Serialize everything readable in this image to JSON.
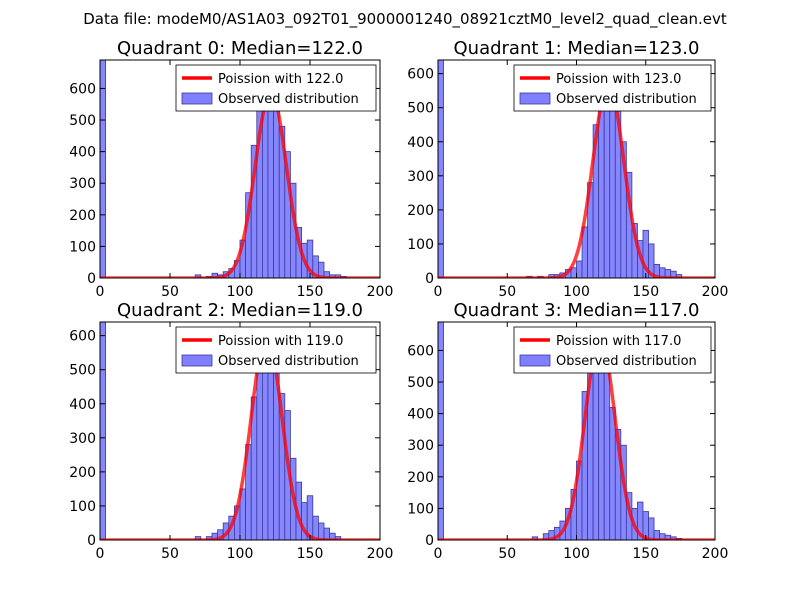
{
  "figure": {
    "suptitle": "Data file: modeM0/AS1A03_092T01_9000001240_08921cztM0_level2_quad_clean.evt"
  },
  "chart_data": [
    {
      "type": "bar",
      "title": "Quadrant 0: Median=122.0",
      "xlim": [
        0,
        200
      ],
      "ylim": [
        0,
        690
      ],
      "xticks": [
        0,
        50,
        100,
        150,
        200
      ],
      "yticks": [
        0,
        100,
        200,
        300,
        400,
        500,
        600
      ],
      "bin_width": 4,
      "series": [
        {
          "name": "Observed distribution",
          "kind": "histogram",
          "bins": [
            [
              0,
              690
            ],
            [
              68,
              10
            ],
            [
              76,
              5
            ],
            [
              80,
              15
            ],
            [
              84,
              10
            ],
            [
              88,
              20
            ],
            [
              92,
              30
            ],
            [
              96,
              55
            ],
            [
              100,
              120
            ],
            [
              104,
              270
            ],
            [
              108,
              420
            ],
            [
              112,
              590
            ],
            [
              116,
              660
            ],
            [
              120,
              660
            ],
            [
              124,
              580
            ],
            [
              128,
              480
            ],
            [
              132,
              400
            ],
            [
              136,
              300
            ],
            [
              140,
              160
            ],
            [
              144,
              110
            ],
            [
              148,
              120
            ],
            [
              152,
              70
            ],
            [
              156,
              50
            ],
            [
              160,
              20
            ],
            [
              164,
              10
            ],
            [
              168,
              10
            ],
            [
              172,
              5
            ]
          ],
          "color": "#7f7fff"
        },
        {
          "name": "Poission with 122.0",
          "kind": "poisson",
          "mean": 122.0,
          "peak": 590,
          "color": "#ff0000"
        }
      ]
    },
    {
      "type": "bar",
      "title": "Quadrant 1: Median=123.0",
      "xlim": [
        0,
        200
      ],
      "ylim": [
        0,
        640
      ],
      "xticks": [
        0,
        50,
        100,
        150,
        200
      ],
      "yticks": [
        0,
        100,
        200,
        300,
        400,
        500,
        600
      ],
      "bin_width": 4,
      "series": [
        {
          "name": "Observed distribution",
          "kind": "histogram",
          "bins": [
            [
              0,
              640
            ],
            [
              64,
              5
            ],
            [
              72,
              5
            ],
            [
              80,
              10
            ],
            [
              84,
              10
            ],
            [
              88,
              15
            ],
            [
              92,
              25
            ],
            [
              96,
              30
            ],
            [
              100,
              50
            ],
            [
              104,
              150
            ],
            [
              108,
              280
            ],
            [
              112,
              450
            ],
            [
              116,
              560
            ],
            [
              120,
              575
            ],
            [
              124,
              550
            ],
            [
              128,
              490
            ],
            [
              132,
              400
            ],
            [
              136,
              310
            ],
            [
              140,
              160
            ],
            [
              144,
              110
            ],
            [
              148,
              140
            ],
            [
              152,
              100
            ],
            [
              156,
              40
            ],
            [
              160,
              30
            ],
            [
              164,
              25
            ],
            [
              168,
              20
            ],
            [
              172,
              10
            ]
          ],
          "color": "#7f7fff"
        },
        {
          "name": "Poission with 123.0",
          "kind": "poisson",
          "mean": 123.0,
          "peak": 570,
          "color": "#ff0000"
        }
      ]
    },
    {
      "type": "bar",
      "title": "Quadrant 2: Median=119.0",
      "xlim": [
        0,
        200
      ],
      "ylim": [
        0,
        640
      ],
      "xticks": [
        0,
        50,
        100,
        150,
        200
      ],
      "yticks": [
        0,
        100,
        200,
        300,
        400,
        500,
        600
      ],
      "bin_width": 4,
      "series": [
        {
          "name": "Observed distribution",
          "kind": "histogram",
          "bins": [
            [
              0,
              640
            ],
            [
              68,
              10
            ],
            [
              76,
              10
            ],
            [
              80,
              20
            ],
            [
              84,
              30
            ],
            [
              88,
              50
            ],
            [
              92,
              70
            ],
            [
              96,
              100
            ],
            [
              100,
              150
            ],
            [
              104,
              280
            ],
            [
              108,
              420
            ],
            [
              112,
              520
            ],
            [
              116,
              590
            ],
            [
              120,
              600
            ],
            [
              124,
              550
            ],
            [
              128,
              430
            ],
            [
              132,
              380
            ],
            [
              136,
              240
            ],
            [
              140,
              170
            ],
            [
              144,
              110
            ],
            [
              148,
              130
            ],
            [
              152,
              70
            ],
            [
              156,
              50
            ],
            [
              160,
              35
            ],
            [
              164,
              20
            ],
            [
              168,
              10
            ]
          ],
          "color": "#7f7fff"
        },
        {
          "name": "Poission with 119.0",
          "kind": "poisson",
          "mean": 119.0,
          "peak": 600,
          "color": "#ff0000"
        }
      ]
    },
    {
      "type": "bar",
      "title": "Quadrant 3: Median=117.0",
      "xlim": [
        0,
        200
      ],
      "ylim": [
        0,
        690
      ],
      "xticks": [
        0,
        50,
        100,
        150,
        200
      ],
      "yticks": [
        0,
        100,
        200,
        300,
        400,
        500,
        600
      ],
      "bin_width": 4,
      "series": [
        {
          "name": "Observed distribution",
          "kind": "histogram",
          "bins": [
            [
              0,
              690
            ],
            [
              68,
              10
            ],
            [
              76,
              20
            ],
            [
              80,
              30
            ],
            [
              84,
              40
            ],
            [
              88,
              60
            ],
            [
              92,
              100
            ],
            [
              96,
              160
            ],
            [
              100,
              250
            ],
            [
              104,
              470
            ],
            [
              108,
              600
            ],
            [
              112,
              620
            ],
            [
              116,
              650
            ],
            [
              120,
              600
            ],
            [
              124,
              420
            ],
            [
              128,
              350
            ],
            [
              132,
              300
            ],
            [
              136,
              150
            ],
            [
              140,
              100
            ],
            [
              144,
              120
            ],
            [
              148,
              90
            ],
            [
              152,
              70
            ],
            [
              156,
              30
            ],
            [
              160,
              20
            ],
            [
              164,
              15
            ],
            [
              168,
              10
            ],
            [
              172,
              5
            ]
          ],
          "color": "#7f7fff"
        },
        {
          "name": "Poission with 117.0",
          "kind": "poisson",
          "mean": 117.0,
          "peak": 640,
          "color": "#ff0000"
        }
      ]
    }
  ]
}
